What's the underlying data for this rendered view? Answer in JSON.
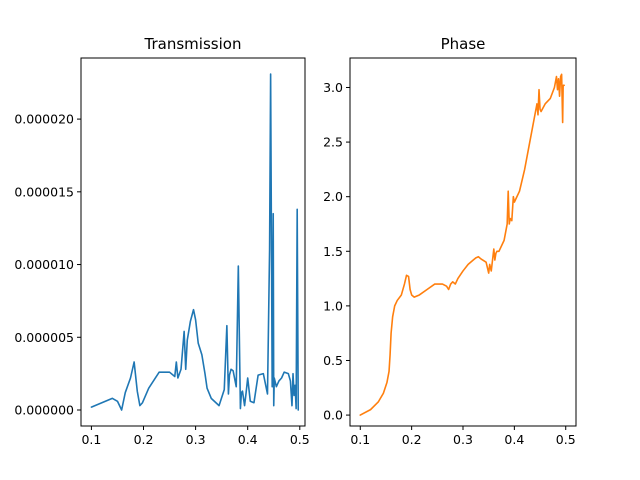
{
  "chart_data": [
    {
      "type": "line",
      "title": "Transmission",
      "xlabel": "",
      "ylabel": "",
      "xlim": [
        0.08,
        0.51
      ],
      "ylim": [
        -1.1e-06,
        2.42e-05
      ],
      "xticks": [
        0.1,
        0.2,
        0.3,
        0.4,
        0.5
      ],
      "xtick_labels": [
        "0.1",
        "0.2",
        "0.3",
        "0.4",
        "0.5"
      ],
      "yticks": [
        0.0,
        5e-06,
        1e-05,
        1.5e-05,
        2e-05
      ],
      "ytick_labels": [
        "0.000000",
        "0.000005",
        "0.000010",
        "0.000015",
        "0.000020"
      ],
      "grid": false,
      "series": [
        {
          "color": "#1f77b4",
          "x": [
            0.1,
            0.12,
            0.14,
            0.15,
            0.158,
            0.165,
            0.175,
            0.182,
            0.188,
            0.193,
            0.198,
            0.21,
            0.23,
            0.25,
            0.26,
            0.263,
            0.266,
            0.272,
            0.278,
            0.281,
            0.284,
            0.29,
            0.296,
            0.3,
            0.305,
            0.312,
            0.318,
            0.322,
            0.33,
            0.345,
            0.355,
            0.36,
            0.363,
            0.365,
            0.368,
            0.372,
            0.378,
            0.382,
            0.386,
            0.388,
            0.39,
            0.394,
            0.397,
            0.4,
            0.405,
            0.412,
            0.42,
            0.43,
            0.438,
            0.442,
            0.444,
            0.447,
            0.449,
            0.45,
            0.451,
            0.455,
            0.46,
            0.465,
            0.47,
            0.478,
            0.482,
            0.485,
            0.487,
            0.489,
            0.491,
            0.493,
            0.495,
            0.497
          ],
          "y": [
            2e-07,
            5e-07,
            8e-07,
            6e-07,
            0.0,
            1.2e-06,
            2.2e-06,
            3.3e-06,
            1.3e-06,
            3e-07,
            5e-07,
            1.5e-06,
            2.6e-06,
            2.6e-06,
            2.3e-06,
            3.3e-06,
            2.2e-06,
            2.8e-06,
            5.4e-06,
            2.8e-06,
            4.8e-06,
            6.1e-06,
            6.9e-06,
            6.2e-06,
            4.6e-06,
            3.8e-06,
            2.5e-06,
            1.5e-06,
            8e-07,
            3e-07,
            1.4e-06,
            5.8e-06,
            1.1e-06,
            2.4e-06,
            2.8e-06,
            2.7e-06,
            1.6e-06,
            9.9e-06,
            1e-07,
            1.2e-06,
            1.3e-06,
            3e-07,
            1.2e-06,
            2.2e-06,
            6e-07,
            5e-07,
            2.4e-06,
            2.5e-06,
            1.1e-06,
            1.1e-05,
            2.31e-05,
            1.6e-06,
            1.35e-05,
            3e-07,
            2.2e-06,
            1.6e-06,
            2e-06,
            2.2e-06,
            2.6e-06,
            2.5e-06,
            2e-06,
            3e-07,
            2.5e-06,
            1e-06,
            1.7e-06,
            1e-07,
            1.38e-05,
            0.0
          ]
        }
      ]
    },
    {
      "type": "line",
      "title": "Phase",
      "xlabel": "",
      "ylabel": "",
      "xlim": [
        0.08,
        0.52
      ],
      "ylim": [
        -0.1,
        3.27
      ],
      "xticks": [
        0.1,
        0.2,
        0.3,
        0.4,
        0.5
      ],
      "xtick_labels": [
        "0.1",
        "0.2",
        "0.3",
        "0.4",
        "0.5"
      ],
      "yticks": [
        0.0,
        0.5,
        1.0,
        1.5,
        2.0,
        2.5,
        3.0
      ],
      "ytick_labels": [
        "0.0",
        "0.5",
        "1.0",
        "1.5",
        "2.0",
        "2.5",
        "3.0"
      ],
      "grid": false,
      "series": [
        {
          "color": "#ff7f0e",
          "x": [
            0.1,
            0.12,
            0.135,
            0.145,
            0.152,
            0.156,
            0.158,
            0.16,
            0.163,
            0.167,
            0.172,
            0.18,
            0.186,
            0.19,
            0.194,
            0.197,
            0.2,
            0.205,
            0.215,
            0.23,
            0.245,
            0.26,
            0.268,
            0.272,
            0.276,
            0.28,
            0.285,
            0.29,
            0.3,
            0.31,
            0.32,
            0.325,
            0.33,
            0.335,
            0.345,
            0.35,
            0.352,
            0.355,
            0.36,
            0.362,
            0.364,
            0.366,
            0.37,
            0.38,
            0.384,
            0.386,
            0.388,
            0.39,
            0.392,
            0.395,
            0.398,
            0.4,
            0.41,
            0.42,
            0.43,
            0.44,
            0.444,
            0.446,
            0.448,
            0.45,
            0.452,
            0.46,
            0.47,
            0.478,
            0.482,
            0.484,
            0.486,
            0.488,
            0.49,
            0.492,
            0.494,
            0.495,
            0.497
          ],
          "y": [
            0.0,
            0.05,
            0.12,
            0.2,
            0.3,
            0.4,
            0.55,
            0.75,
            0.9,
            1.0,
            1.05,
            1.1,
            1.2,
            1.28,
            1.27,
            1.15,
            1.1,
            1.08,
            1.1,
            1.15,
            1.2,
            1.2,
            1.18,
            1.15,
            1.2,
            1.22,
            1.2,
            1.25,
            1.32,
            1.38,
            1.42,
            1.44,
            1.45,
            1.43,
            1.4,
            1.3,
            1.38,
            1.32,
            1.52,
            1.42,
            1.48,
            1.5,
            1.5,
            1.6,
            1.7,
            1.75,
            2.05,
            1.75,
            1.8,
            1.78,
            2.0,
            1.95,
            2.05,
            2.25,
            2.5,
            2.75,
            2.85,
            2.75,
            2.98,
            2.8,
            2.78,
            2.85,
            2.9,
            3.0,
            3.1,
            2.98,
            3.08,
            2.92,
            3.1,
            3.12,
            2.68,
            3.02,
            3.02
          ]
        }
      ]
    }
  ]
}
